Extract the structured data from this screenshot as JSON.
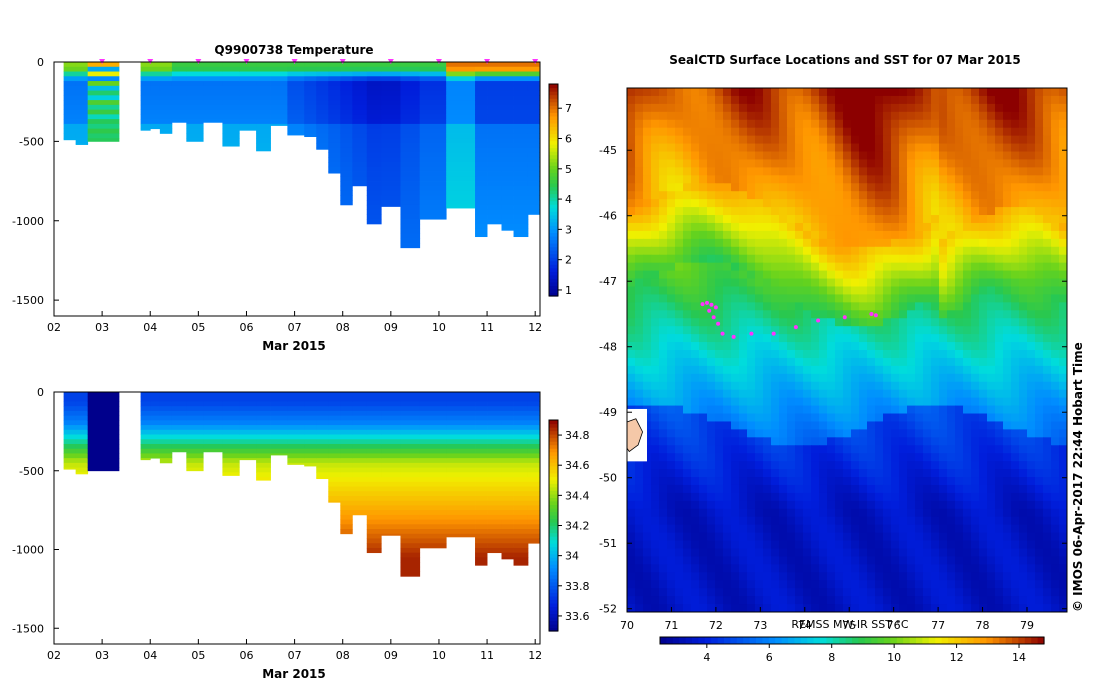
{
  "chart_data": [
    {
      "type": "heatmap",
      "title": "Q9900738  Temperature",
      "xlabel": "Mar 2015",
      "x_ticks": [
        "02",
        "03",
        "04",
        "05",
        "06",
        "07",
        "08",
        "09",
        "10",
        "11",
        "12"
      ],
      "xlim": [
        2,
        12.1
      ],
      "y_ticks": [
        "0",
        "-500",
        "-1000",
        "-1500"
      ],
      "ylim": [
        -1600,
        0
      ],
      "colorbar_ticks": [
        "1",
        "2",
        "3",
        "4",
        "5",
        "6",
        "7"
      ],
      "colorbar_range": [
        0.8,
        7.8
      ],
      "profiles": [
        {
          "start": 2.2,
          "end": 2.45,
          "depth": 490
        },
        {
          "start": 2.45,
          "end": 2.7,
          "depth": 520
        },
        {
          "start": 2.7,
          "end": 3.35,
          "depth": 500
        },
        {
          "start": 3.8,
          "end": 4.0,
          "depth": 430
        },
        {
          "start": 4.0,
          "end": 4.2,
          "depth": 420
        },
        {
          "start": 4.2,
          "end": 4.45,
          "depth": 450
        },
        {
          "start": 4.45,
          "end": 4.75,
          "depth": 380
        },
        {
          "start": 4.75,
          "end": 5.1,
          "depth": 500
        },
        {
          "start": 5.1,
          "end": 5.5,
          "depth": 380
        },
        {
          "start": 5.5,
          "end": 5.85,
          "depth": 530
        },
        {
          "start": 5.85,
          "end": 6.2,
          "depth": 430
        },
        {
          "start": 6.2,
          "end": 6.5,
          "depth": 560
        },
        {
          "start": 6.5,
          "end": 6.85,
          "depth": 400
        },
        {
          "start": 6.85,
          "end": 7.2,
          "depth": 460
        },
        {
          "start": 7.2,
          "end": 7.45,
          "depth": 470
        },
        {
          "start": 7.45,
          "end": 7.7,
          "depth": 550
        },
        {
          "start": 7.7,
          "end": 7.95,
          "depth": 700
        },
        {
          "start": 7.95,
          "end": 8.2,
          "depth": 900
        },
        {
          "start": 8.2,
          "end": 8.5,
          "depth": 780
        },
        {
          "start": 8.5,
          "end": 8.8,
          "depth": 1020
        },
        {
          "start": 8.8,
          "end": 9.2,
          "depth": 910
        },
        {
          "start": 9.2,
          "end": 9.6,
          "depth": 1170
        },
        {
          "start": 9.6,
          "end": 10.15,
          "depth": 990
        },
        {
          "start": 10.15,
          "end": 10.75,
          "depth": 920
        },
        {
          "start": 10.75,
          "end": 11.0,
          "depth": 1100
        },
        {
          "start": 11.0,
          "end": 11.3,
          "depth": 1020
        },
        {
          "start": 11.3,
          "end": 11.55,
          "depth": 1060
        },
        {
          "start": 11.55,
          "end": 11.85,
          "depth": 1100
        },
        {
          "start": 11.85,
          "end": 12.08,
          "depth": 960
        }
      ],
      "markers_x": [
        3.0,
        4.0,
        5.0,
        6.0,
        7.0,
        8.0,
        9.0,
        10.0,
        11.0,
        12.0
      ],
      "colors": {
        "marker": "#ff33ff"
      }
    },
    {
      "type": "heatmap",
      "title": "",
      "xlabel": "Mar 2015",
      "x_ticks": [
        "02",
        "03",
        "04",
        "05",
        "06",
        "07",
        "08",
        "09",
        "10",
        "11",
        "12"
      ],
      "xlim": [
        2,
        12.1
      ],
      "y_ticks": [
        "0",
        "-500",
        "-1000",
        "-1500"
      ],
      "ylim": [
        -1600,
        0
      ],
      "colorbar_ticks": [
        "33.6",
        "33.8",
        "34",
        "34.2",
        "34.4",
        "34.6",
        "34.8"
      ],
      "colorbar_range": [
        33.5,
        34.9
      ]
    },
    {
      "type": "heatmap",
      "title": "SealCTD Surface Locations and SST for 07 Mar 2015",
      "x_ticks": [
        "70",
        "71",
        "72",
        "73",
        "74",
        "75",
        "76",
        "77",
        "78",
        "79"
      ],
      "xlim": [
        70,
        79.9
      ],
      "y_ticks": [
        "-45",
        "-46",
        "-47",
        "-48",
        "-49",
        "-50",
        "-51",
        "-52"
      ],
      "ylim": [
        -52.05,
        -44.05
      ],
      "colorbar_label": "REMSS MW-IR SST °C",
      "colorbar_ticks": [
        "4",
        "6",
        "8",
        "10",
        "12",
        "14"
      ],
      "colorbar_range": [
        2.5,
        14.8
      ],
      "seal_locations": [
        [
          71.7,
          -47.35
        ],
        [
          71.8,
          -47.33
        ],
        [
          71.9,
          -47.36
        ],
        [
          72.0,
          -47.4
        ],
        [
          71.85,
          -47.45
        ],
        [
          71.95,
          -47.55
        ],
        [
          72.05,
          -47.65
        ],
        [
          72.15,
          -47.8
        ],
        [
          72.4,
          -47.85
        ],
        [
          72.8,
          -47.8
        ],
        [
          73.3,
          -47.8
        ],
        [
          73.8,
          -47.7
        ],
        [
          74.3,
          -47.6
        ],
        [
          74.9,
          -47.55
        ],
        [
          75.5,
          -47.5
        ],
        [
          75.6,
          -47.52
        ]
      ],
      "colors": {
        "marker": "#ff33ff",
        "land": "#f5c8a8"
      }
    }
  ],
  "credit": "© IMOS 06-Apr-2017 22:44 Hobart Time"
}
